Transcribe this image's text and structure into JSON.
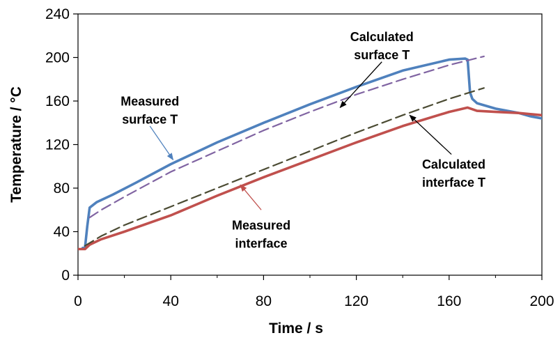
{
  "chart_data": {
    "type": "line",
    "title": "",
    "xlabel": "Time / s",
    "ylabel": "Temperature / °C",
    "xlim": [
      0,
      200
    ],
    "ylim": [
      0,
      240
    ],
    "xticks": [
      0,
      40,
      80,
      120,
      160,
      200
    ],
    "yticks": [
      0,
      40,
      80,
      120,
      160,
      200,
      240
    ],
    "grid": false,
    "legend": "none",
    "series": [
      {
        "key": "measured_surface",
        "color": "#4f81bd",
        "dash": "solid",
        "points": [
          [
            2,
            25
          ],
          [
            3,
            25
          ],
          [
            4,
            45
          ],
          [
            5,
            62
          ],
          [
            8,
            67
          ],
          [
            15,
            74
          ],
          [
            25,
            85
          ],
          [
            40,
            102
          ],
          [
            60,
            122
          ],
          [
            80,
            140
          ],
          [
            100,
            157
          ],
          [
            120,
            173
          ],
          [
            140,
            188
          ],
          [
            160,
            198
          ],
          [
            167,
            199
          ],
          [
            168,
            198
          ],
          [
            169,
            168
          ],
          [
            170,
            162
          ],
          [
            172,
            158
          ],
          [
            180,
            153
          ],
          [
            190,
            149
          ],
          [
            195,
            146
          ],
          [
            200,
            144
          ]
        ]
      },
      {
        "key": "calculated_surface",
        "color": "#8064a2",
        "dash": "dashed",
        "points": [
          [
            5,
            53
          ],
          [
            10,
            60
          ],
          [
            20,
            72
          ],
          [
            40,
            95
          ],
          [
            60,
            114
          ],
          [
            80,
            133
          ],
          [
            100,
            150
          ],
          [
            120,
            166
          ],
          [
            140,
            180
          ],
          [
            160,
            193
          ],
          [
            175,
            201
          ]
        ]
      },
      {
        "key": "measured_interface",
        "color": "#c0504d",
        "dash": "solid",
        "points": [
          [
            0,
            24
          ],
          [
            3,
            24
          ],
          [
            5,
            28
          ],
          [
            10,
            33
          ],
          [
            20,
            40
          ],
          [
            40,
            55
          ],
          [
            50,
            64
          ],
          [
            60,
            73
          ],
          [
            80,
            90
          ],
          [
            100,
            106
          ],
          [
            120,
            122
          ],
          [
            140,
            137
          ],
          [
            160,
            150
          ],
          [
            168,
            154
          ],
          [
            172,
            151
          ],
          [
            180,
            150
          ],
          [
            190,
            149
          ],
          [
            200,
            147
          ]
        ]
      },
      {
        "key": "calculated_interface",
        "color": "#4b4b33",
        "dash": "dashed",
        "points": [
          [
            3,
            27
          ],
          [
            10,
            36
          ],
          [
            20,
            46
          ],
          [
            40,
            63
          ],
          [
            60,
            80
          ],
          [
            80,
            97
          ],
          [
            100,
            114
          ],
          [
            120,
            131
          ],
          [
            140,
            147
          ],
          [
            160,
            162
          ],
          [
            175,
            172
          ]
        ]
      }
    ],
    "annotations": [
      {
        "key": "measured_surface",
        "lines": [
          "Measured",
          "surface T"
        ],
        "color": "#4f81bd",
        "text_at": [
          31,
          156
        ],
        "arrow_from": [
          31,
          137
        ],
        "arrow_to": [
          41,
          106
        ]
      },
      {
        "key": "calculated_surface",
        "lines": [
          "Calculated",
          "surface T"
        ],
        "color": "#000000",
        "text_at": [
          131,
          215
        ],
        "arrow_from": [
          131,
          196
        ],
        "arrow_to": [
          113,
          154
        ]
      },
      {
        "key": "calculated_interface",
        "lines": [
          "Calculated",
          "interface T"
        ],
        "color": "#000000",
        "text_at": [
          162,
          98
        ],
        "arrow_from": [
          161,
          111
        ],
        "arrow_to": [
          143,
          147
        ]
      },
      {
        "key": "measured_interface",
        "lines": [
          "Measured",
          "interface"
        ],
        "color": "#c0504d",
        "text_at": [
          79,
          42
        ],
        "arrow_from": [
          79,
          60
        ],
        "arrow_to": [
          70,
          83
        ]
      }
    ]
  }
}
